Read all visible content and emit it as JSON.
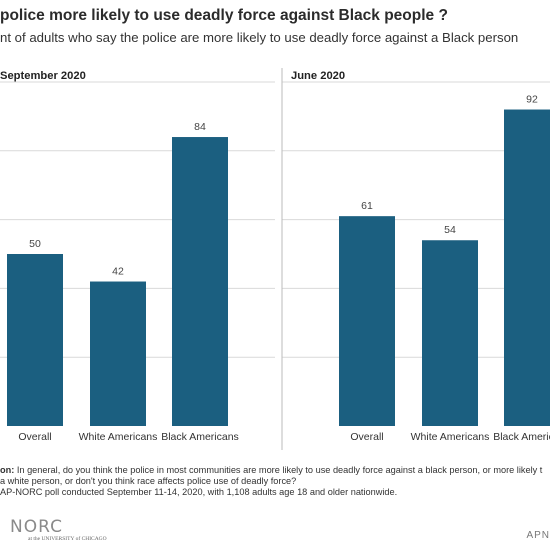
{
  "header": {
    "title": "police more likely to use deadly force against Black people ?",
    "subtitle": "nt of adults who say the police are more likely to use deadly force against a Black person"
  },
  "footer": {
    "question_label": "on:",
    "question_text": " In general, do you think the police in most communities are more likely to use deadly force against a black person, or more likely t",
    "question_line2": "a white person, or don't you think race affects police use of deadly force?",
    "source_text": "AP-NORC poll conducted September 11-14, 2020, with 1,108 adults age 18 and older nationwide.",
    "logo_text": "NORC",
    "logo_sub": "at the UNIVERSITY of CHICAGO",
    "right_mark": "APN"
  },
  "colors": {
    "bar": "#1b5f80",
    "grid": "#d9d9d9",
    "divider": "#bbbbbb"
  },
  "chart_data": [
    {
      "type": "bar",
      "title": "September 2020",
      "categories": [
        "Overall",
        "White Americans",
        "Black Americans"
      ],
      "values": [
        50,
        42,
        84
      ],
      "ylim": [
        0,
        100
      ],
      "grid": true
    },
    {
      "type": "bar",
      "title": "June 2020",
      "categories": [
        "Overall",
        "White Americans",
        "Black Americans"
      ],
      "values": [
        61,
        54,
        92
      ],
      "ylim": [
        0,
        100
      ],
      "grid": true
    }
  ]
}
